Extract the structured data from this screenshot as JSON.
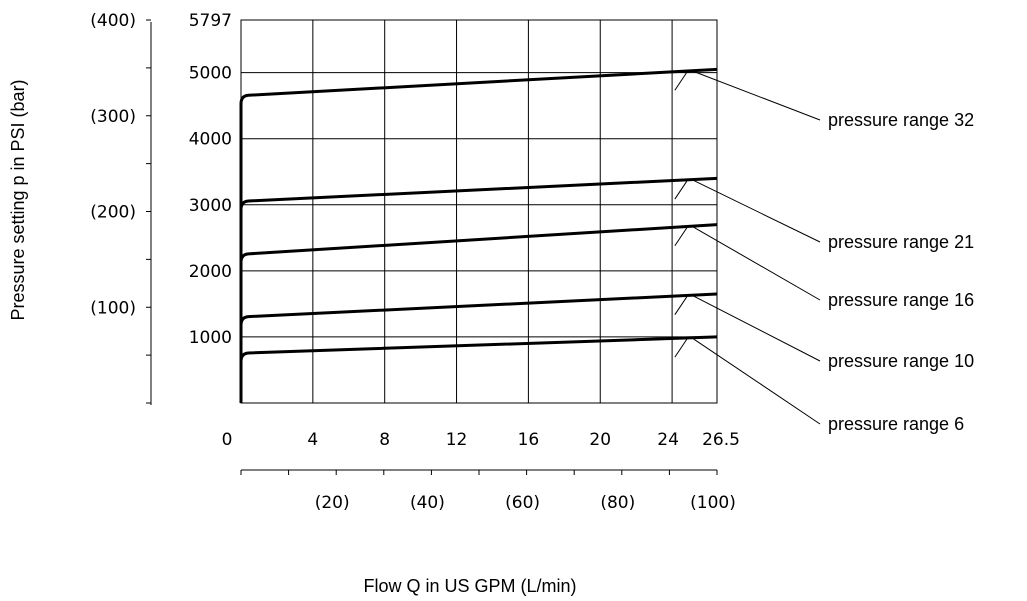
{
  "chart_data": {
    "type": "line",
    "title": "",
    "xlabel": "Flow Q in US GPM (L/min)",
    "ylabel": "Pressure setting p in PSI (bar)",
    "xlim": [
      0,
      26.5
    ],
    "ylim": [
      0,
      5797
    ],
    "grid": true,
    "x_ticks": [
      "0",
      "4",
      "8",
      "12",
      "16",
      "20",
      "24",
      "26.5"
    ],
    "x_tick_values": [
      0,
      4,
      8,
      12,
      16,
      20,
      24,
      26.5
    ],
    "x_secondary_ticks": [
      "(20)",
      "(40)",
      "(60)",
      "(80)",
      "(100)"
    ],
    "x_secondary_values": [
      20,
      40,
      60,
      80,
      100
    ],
    "x_secondary_range": [
      0,
      100
    ],
    "y_ticks": [
      "1000",
      "2000",
      "3000",
      "4000",
      "5000",
      "5797"
    ],
    "y_tick_values": [
      1000,
      2000,
      3000,
      4000,
      5000,
      5797
    ],
    "y_secondary_ticks": [
      "(100)",
      "(200)",
      "(300)",
      "(400)"
    ],
    "y_secondary_values": [
      100,
      200,
      300,
      400
    ],
    "y_secondary_range": [
      0,
      400
    ],
    "series": [
      {
        "name": "pressure range 32",
        "x": [
          0,
          0.25,
          26.5
        ],
        "y": [
          0,
          4650,
          5050
        ]
      },
      {
        "name": "pressure range 21",
        "x": [
          0,
          0.25,
          26.5
        ],
        "y": [
          0,
          3050,
          3400
        ]
      },
      {
        "name": "pressure range 16",
        "x": [
          0,
          0.25,
          26.5
        ],
        "y": [
          0,
          2250,
          2700
        ]
      },
      {
        "name": "pressure range 10",
        "x": [
          0,
          0.25,
          26.5
        ],
        "y": [
          0,
          1300,
          1650
        ]
      },
      {
        "name": "pressure range 6",
        "x": [
          0,
          0.25,
          26.5
        ],
        "y": [
          0,
          750,
          1000
        ]
      }
    ]
  }
}
